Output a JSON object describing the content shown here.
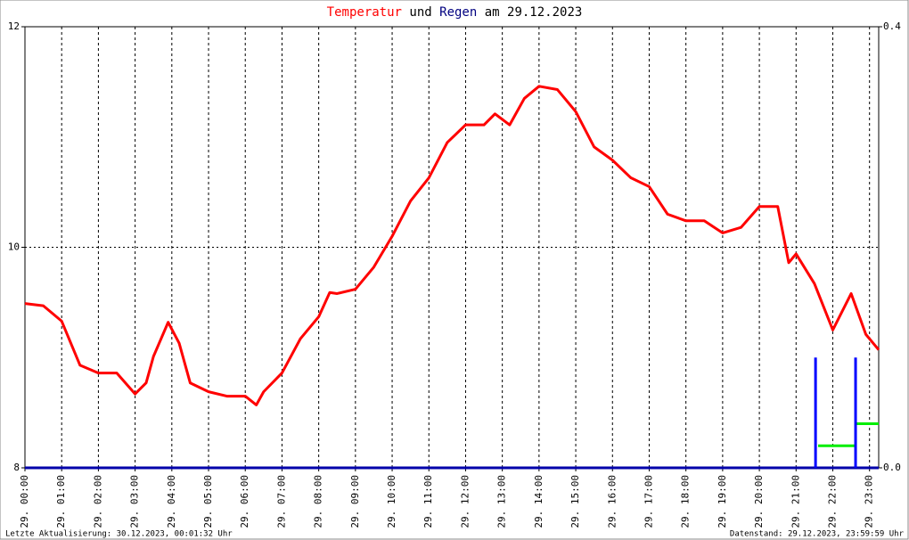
{
  "chart_data": {
    "type": "line",
    "title_parts": [
      "Temperatur",
      "und",
      "Regen",
      "am 29.12.2023"
    ],
    "title_colors": [
      "#ff0000",
      "#000000",
      "#000080",
      "#000000"
    ],
    "x": [
      0,
      0.5,
      1,
      1.25,
      1.5,
      2,
      2.5,
      3,
      3.3,
      3.5,
      3.9,
      4.2,
      4.5,
      5,
      5.5,
      6,
      6.3,
      6.5,
      7,
      7.5,
      8,
      8.3,
      8.5,
      9,
      9.5,
      10,
      10.5,
      11,
      11.5,
      12,
      12.5,
      12.8,
      13.2,
      13.6,
      14,
      14.5,
      15,
      15.5,
      16,
      16.5,
      17,
      17.5,
      18,
      18.5,
      19,
      19.5,
      20,
      20.5,
      20.8,
      21,
      21.5,
      22,
      22.5,
      22.9,
      23.25
    ],
    "series": [
      {
        "color": "#ff0000",
        "values": [
          9.49,
          9.47,
          9.33,
          9.13,
          8.93,
          8.86,
          8.86,
          8.67,
          8.77,
          9.01,
          9.32,
          9.13,
          8.77,
          8.69,
          8.65,
          8.65,
          8.57,
          8.69,
          8.86,
          9.17,
          9.37,
          9.59,
          9.58,
          9.62,
          9.82,
          10.1,
          10.42,
          10.63,
          10.95,
          11.11,
          11.11,
          11.21,
          11.11,
          11.35,
          11.46,
          11.43,
          11.23,
          10.91,
          10.79,
          10.63,
          10.55,
          10.3,
          10.24,
          10.24,
          10.13,
          10.18,
          10.37,
          10.37,
          9.86,
          9.94,
          9.67,
          9.25,
          9.58,
          9.21,
          9.07
        ]
      }
    ],
    "rain": {
      "color": "#0000ff",
      "axis": "y2",
      "x": [
        21.53,
        22.62
      ],
      "values": [
        0.1,
        0.1
      ]
    },
    "rain_level": {
      "color": "#00ee00",
      "axis": "y2",
      "x": [
        21.6,
        22.62
      ],
      "x_end": [
        22.6,
        23.25
      ],
      "values": [
        0.02,
        0.04
      ]
    },
    "xlim": [
      0,
      23.25
    ],
    "xticks": [
      {
        "value": 0,
        "label": "29. 00:00"
      },
      {
        "value": 1,
        "label": "29. 01:00"
      },
      {
        "value": 2,
        "label": "29. 02:00"
      },
      {
        "value": 3,
        "label": "29. 03:00"
      },
      {
        "value": 4,
        "label": "29. 04:00"
      },
      {
        "value": 5,
        "label": "29. 05:00"
      },
      {
        "value": 6,
        "label": "29. 06:00"
      },
      {
        "value": 7,
        "label": "29. 07:00"
      },
      {
        "value": 8,
        "label": "29. 08:00"
      },
      {
        "value": 9,
        "label": "29. 09:00"
      },
      {
        "value": 10,
        "label": "29. 10:00"
      },
      {
        "value": 11,
        "label": "29. 11:00"
      },
      {
        "value": 12,
        "label": "29. 12:00"
      },
      {
        "value": 13,
        "label": "29. 13:00"
      },
      {
        "value": 14,
        "label": "29. 14:00"
      },
      {
        "value": 15,
        "label": "29. 15:00"
      },
      {
        "value": 16,
        "label": "29. 16:00"
      },
      {
        "value": 17,
        "label": "29. 17:00"
      },
      {
        "value": 18,
        "label": "29. 18:00"
      },
      {
        "value": 19,
        "label": "29. 19:00"
      },
      {
        "value": 20,
        "label": "29. 20:00"
      },
      {
        "value": 21,
        "label": "29. 21:00"
      },
      {
        "value": 22,
        "label": "29. 22:00"
      },
      {
        "value": 23,
        "label": "29. 23:00"
      }
    ],
    "ylim": [
      8,
      12
    ],
    "yticks": [
      8,
      10,
      12
    ],
    "y2lim": [
      0,
      0.4
    ],
    "y2ticks": [
      {
        "value": 0,
        "label": "0.0"
      },
      0.4
    ],
    "grid": true,
    "footer_left": "Letzte Aktualisierung: 30.12.2023, 00:01:32 Uhr",
    "footer_right": "Datenstand: 29.12.2023, 23:59:59 Uhr"
  }
}
